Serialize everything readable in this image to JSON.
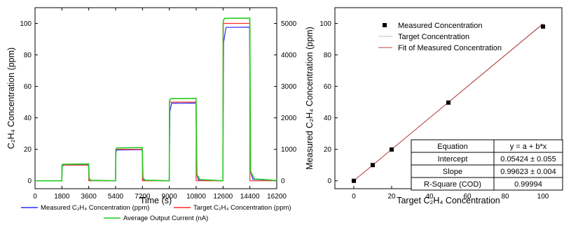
{
  "chart_data": [
    {
      "type": "line",
      "xlabel": "Time (s)",
      "ylabel": "C₂H₄ Concentration (ppm)",
      "y2label": "",
      "xlim": [
        0,
        16200
      ],
      "ylim": [
        -5,
        110
      ],
      "y2lim": [
        -250,
        5500
      ],
      "x_ticks": [
        0,
        1800,
        3600,
        5400,
        7200,
        9000,
        10800,
        12600,
        14400,
        16200
      ],
      "y_ticks": [
        0,
        20,
        40,
        60,
        80,
        100
      ],
      "y2_ticks": [
        0,
        1000,
        2000,
        3000,
        4000,
        5000
      ],
      "legend_position": "bottom",
      "series": [
        {
          "name": "Measured C₂H₄ Concentration (ppm)",
          "color": "#2b2bff",
          "axis": "left",
          "x": [
            0,
            1790,
            1830,
            1900,
            3580,
            3620,
            3700,
            5390,
            5430,
            5500,
            7180,
            7230,
            7320,
            8990,
            9040,
            9150,
            10780,
            10840,
            10950,
            12590,
            12640,
            12800,
            14380,
            14440,
            14600,
            16200
          ],
          "values": [
            0,
            0,
            9.3,
            10.0,
            10.0,
            1.2,
            0.2,
            0,
            18.7,
            19.6,
            19.8,
            1.5,
            0.3,
            0,
            44,
            49.2,
            49.4,
            4,
            0.6,
            0,
            88,
            97.5,
            97.6,
            6,
            1,
            0.1
          ]
        },
        {
          "name": "Target C₂H₄ Concentration (ppm)",
          "color": "#ff2a2a",
          "axis": "left",
          "x": [
            0,
            1800,
            1800,
            3600,
            3600,
            5400,
            5400,
            7200,
            7200,
            9000,
            9000,
            10800,
            10800,
            12600,
            12600,
            14400,
            14400,
            16200
          ],
          "values": [
            0,
            0,
            10,
            10,
            0,
            0,
            20,
            20,
            0,
            0,
            50,
            50,
            0,
            0,
            100,
            100,
            0,
            0
          ]
        },
        {
          "name": "Average Output Current (nA)",
          "color": "#22cc22",
          "axis": "right",
          "x": [
            0,
            1795,
            1815,
            1860,
            3590,
            3630,
            3750,
            5395,
            5415,
            5480,
            7190,
            7235,
            7380,
            8995,
            9015,
            9100,
            10790,
            10850,
            11050,
            12595,
            12615,
            12700,
            14390,
            14450,
            14700,
            16200
          ],
          "values": [
            0,
            0,
            480,
            525,
            535,
            70,
            15,
            0,
            990,
            1045,
            1055,
            90,
            20,
            0,
            2550,
            2610,
            2620,
            190,
            40,
            0,
            5080,
            5160,
            5170,
            300,
            60,
            10
          ]
        }
      ]
    },
    {
      "type": "scatter",
      "xlabel": "Target C₂H₄ Concentration",
      "ylabel": "Measured C₂H₄ Concentration (ppm)",
      "xlim": [
        -10,
        110
      ],
      "ylim": [
        -5,
        110
      ],
      "x_ticks": [
        0,
        20,
        40,
        60,
        80,
        100
      ],
      "y_ticks": [
        0,
        20,
        40,
        60,
        80,
        100
      ],
      "legend_position": "top-left",
      "series": [
        {
          "name": "Measured Concentration",
          "color": "#000000",
          "x": [
            0,
            10,
            20,
            50,
            100
          ],
          "values": [
            0,
            10.0,
            19.9,
            49.7,
            98.0
          ]
        },
        {
          "name": "Target Concentration",
          "color": "#bbbbbb",
          "x": [
            0,
            100
          ],
          "values": [
            0,
            100
          ]
        },
        {
          "name": "Fit of Measured Concentration",
          "color": "#c04040",
          "x": [
            0,
            100
          ],
          "values": [
            0.05424,
            99.67724
          ]
        }
      ],
      "fit_table": [
        [
          "Equation",
          "y = a + b*x"
        ],
        [
          "Intercept",
          "0.05424 ± 0.055"
        ],
        [
          "Slope",
          "0.99623 ± 0.004"
        ],
        [
          "R-Square (COD)",
          "0.99994"
        ]
      ]
    }
  ]
}
